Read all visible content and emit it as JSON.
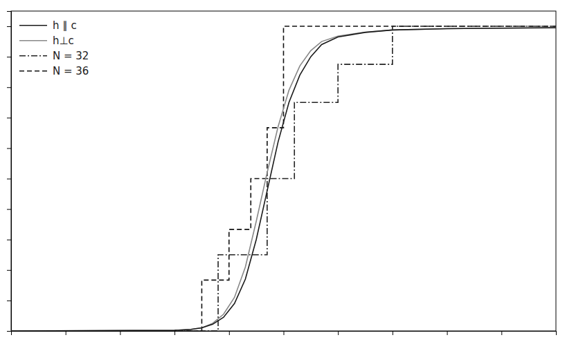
{
  "chart_data": {
    "type": "line",
    "series": [
      {
        "name": "h ∥ c",
        "color": "#1a1a1a",
        "line_style": "solid",
        "x": [
          0.0,
          0.3,
          0.33,
          0.35,
          0.37,
          0.39,
          0.41,
          0.43,
          0.45,
          0.47,
          0.49,
          0.51,
          0.53,
          0.55,
          0.57,
          0.6,
          0.65,
          0.7,
          0.8,
          0.9,
          1.0
        ],
        "values": [
          0.0,
          0.002,
          0.005,
          0.01,
          0.022,
          0.045,
          0.09,
          0.17,
          0.3,
          0.46,
          0.62,
          0.75,
          0.84,
          0.9,
          0.94,
          0.965,
          0.98,
          0.988,
          0.992,
          0.994,
          0.995
        ]
      },
      {
        "name": "h⊥c",
        "color": "#888888",
        "line_style": "solid",
        "x": [
          0.0,
          0.3,
          0.33,
          0.35,
          0.37,
          0.39,
          0.41,
          0.43,
          0.45,
          0.47,
          0.49,
          0.51,
          0.53,
          0.55,
          0.57,
          0.6,
          0.65,
          0.7,
          0.8,
          0.9,
          1.0
        ],
        "values": [
          0.0,
          0.002,
          0.005,
          0.01,
          0.025,
          0.055,
          0.11,
          0.21,
          0.36,
          0.52,
          0.67,
          0.79,
          0.87,
          0.92,
          0.95,
          0.968,
          0.981,
          0.988,
          0.992,
          0.994,
          0.996
        ]
      },
      {
        "name": "N = 32",
        "color": "#222222",
        "line_style": "dashdot",
        "x": [
          0.0,
          0.38,
          0.38,
          0.47,
          0.47,
          0.52,
          0.52,
          0.6,
          0.6,
          0.7,
          0.7,
          1.0
        ],
        "values": [
          0.0,
          0.0,
          0.25,
          0.25,
          0.5,
          0.5,
          0.75,
          0.75,
          0.875,
          0.875,
          1.0,
          1.0
        ]
      },
      {
        "name": "N = 36",
        "color": "#111111",
        "line_style": "dashed",
        "x": [
          0.0,
          0.35,
          0.35,
          0.4,
          0.4,
          0.44,
          0.44,
          0.47,
          0.47,
          0.5,
          0.5,
          1.0
        ],
        "values": [
          0.0,
          0.0,
          0.167,
          0.167,
          0.333,
          0.333,
          0.5,
          0.5,
          0.667,
          0.667,
          1.0,
          1.0
        ]
      }
    ],
    "xlim": [
      0.0,
      1.0
    ],
    "ylim": [
      0.0,
      1.05
    ],
    "xticks": [
      0,
      0.1,
      0.2,
      0.3,
      0.4,
      0.5,
      0.6,
      0.7,
      0.8,
      0.9,
      1
    ],
    "yticks": [
      0,
      0.1,
      0.2,
      0.3,
      0.4,
      0.5,
      0.6,
      0.7,
      0.8,
      0.9,
      1
    ],
    "tick_labels": false,
    "grid": false,
    "legend": "upper left"
  }
}
